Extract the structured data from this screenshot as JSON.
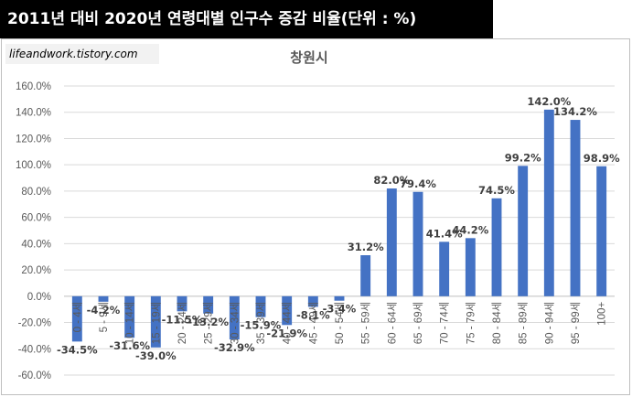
{
  "banner_title": "2011년 대비 2020년 연령대별 인구수 증감 비율(단위 : %)",
  "watermark": "lifeandwork.tistory.com",
  "colors": {
    "bar": "#4472C4",
    "grid": "#d9d9d9",
    "banner_bg": "#000000"
  },
  "chart_data": {
    "type": "bar",
    "title": "창원시",
    "xlabel": "",
    "ylabel": "",
    "ylim": [
      -60,
      160
    ],
    "ytick_step": 20,
    "ytick_labels": [
      "160.0%",
      "140.0%",
      "120.0%",
      "100.0%",
      "80.0%",
      "60.0%",
      "40.0%",
      "20.0%",
      "0.0%",
      "-20.0%",
      "-40.0%",
      "-60.0%"
    ],
    "categories": [
      "0 - 4세",
      "5 - 9세",
      "10 - 14세",
      "15 - 19세",
      "20 - 24세",
      "25 - 29세",
      "30 - 34세",
      "35 - 39세",
      "40 - 44세",
      "45 - 49세",
      "50 - 54세",
      "55 - 59세",
      "60 - 64세",
      "65 - 69세",
      "70 - 74세",
      "75 - 79세",
      "80 - 84세",
      "85 - 89세",
      "90 - 94세",
      "95 - 99세",
      "100+"
    ],
    "values": [
      -34.5,
      -4.2,
      -31.6,
      -39.0,
      -11.5,
      -13.2,
      -32.9,
      -15.9,
      -21.9,
      -8.1,
      -3.4,
      31.2,
      82.0,
      79.4,
      41.4,
      44.2,
      74.5,
      99.2,
      142.0,
      134.2,
      98.9
    ],
    "data_labels": [
      "-34.5%",
      "-4.2%",
      "-31.6%",
      "-39.0%",
      "-11.5%",
      "-13.2%",
      "-32.9%",
      "-15.9%",
      "-21.9%",
      "-8.1%",
      "-3.4%",
      "31.2%",
      "82.0%",
      "79.4%",
      "41.4%",
      "44.2%",
      "74.5%",
      "99.2%",
      "142.0%",
      "134.2%",
      "98.9%"
    ]
  }
}
